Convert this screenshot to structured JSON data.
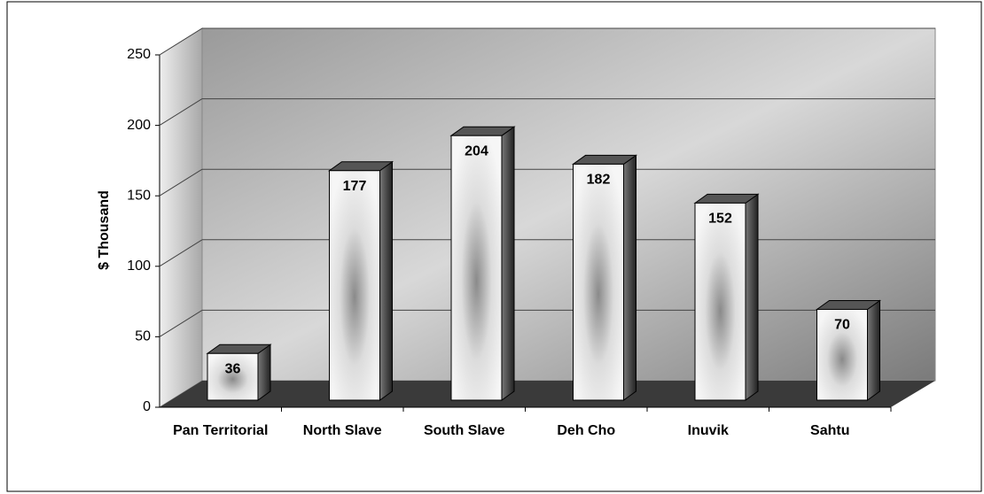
{
  "chart_data": {
    "type": "bar",
    "y_label": "$ Thousand",
    "categories": [
      "Pan Territorial",
      "North Slave",
      "South Slave",
      "Deh Cho",
      "Inuvik",
      "Sahtu"
    ],
    "values": [
      36,
      177,
      204,
      182,
      152,
      70
    ],
    "ylim": [
      0,
      250
    ],
    "yticks": [
      0,
      50,
      100,
      150,
      200,
      250
    ],
    "grid": true,
    "color": "#e8e8e8"
  }
}
